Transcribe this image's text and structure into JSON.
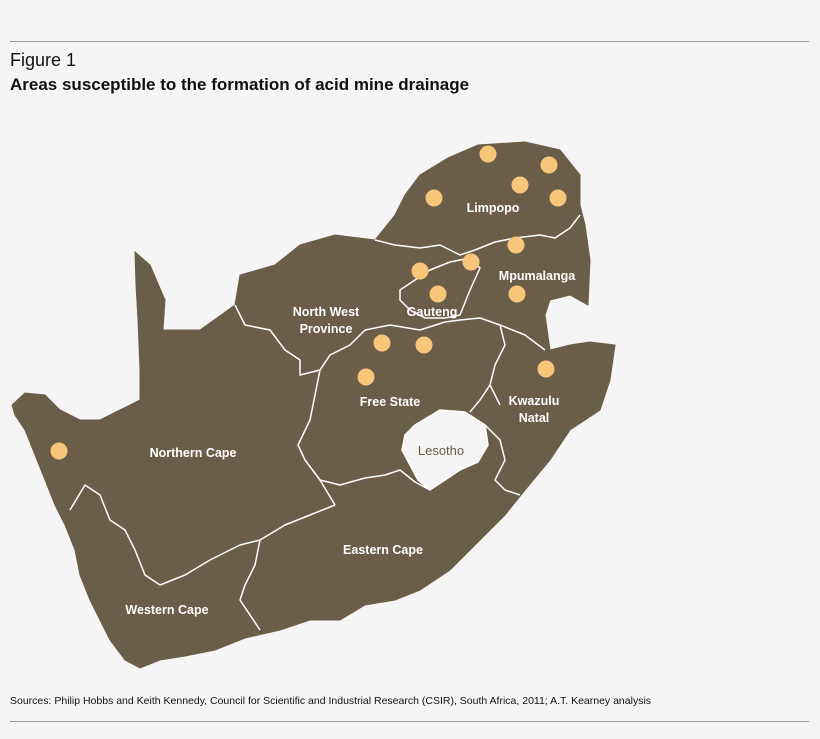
{
  "figure_label": "Figure 1",
  "title": "Areas susceptible to the formation of acid mine drainage",
  "sources": "Sources: Philip Hobbs and Keith Kennedy, Council for Scientific and Industrial Research (CSIR), South Africa, 2011; A.T. Kearney analysis",
  "colors": {
    "land": "#6b5e48",
    "border": "#ffffff",
    "marker": "#f7c67a",
    "background": "#f5f5f5"
  },
  "provinces": {
    "limpopo": "Limpopo",
    "north_west_1": "North West",
    "north_west_2": "Province",
    "mpumalanga": "Mpumalanga",
    "gauteng": "Gauteng",
    "free_state": "Free State",
    "kwazulu_1": "Kwazulu",
    "kwazulu_2": "Natal",
    "northern_cape": "Northern Cape",
    "eastern_cape": "Eastern Cape",
    "western_cape": "Western Cape"
  },
  "lesotho": "Lesotho"
}
